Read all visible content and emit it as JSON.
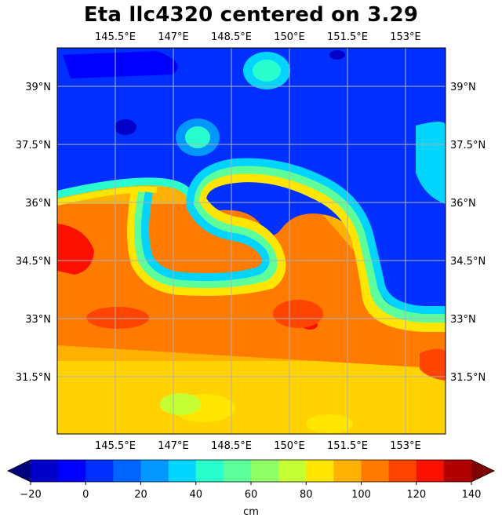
{
  "title": "Eta llc4320 centered on 3.29",
  "map": {
    "lon_ticks": [
      "145.5°E",
      "147°E",
      "148.5°E",
      "150°E",
      "151.5°E",
      "153°E"
    ],
    "lat_ticks": [
      "39°N",
      "37.5°N",
      "36°N",
      "34.5°N",
      "33°N",
      "31.5°N"
    ],
    "gridlines": true,
    "colormap": "jet",
    "colors": [
      "#00007f",
      "#0000c8",
      "#0000ff",
      "#0030ff",
      "#0064ff",
      "#0098ff",
      "#00d4ff",
      "#29ffce",
      "#5dff9a",
      "#90ff66",
      "#c4ff33",
      "#ffe500",
      "#ffb000",
      "#ff7a00",
      "#ff4300",
      "#fa0f00",
      "#b10000",
      "#7f0000"
    ]
  },
  "colorbar": {
    "ticks": [
      "−20",
      "0",
      "20",
      "40",
      "60",
      "80",
      "100",
      "120",
      "140"
    ],
    "label": "cm",
    "range": [
      -20,
      140
    ],
    "step": 10,
    "extend": "both"
  }
}
